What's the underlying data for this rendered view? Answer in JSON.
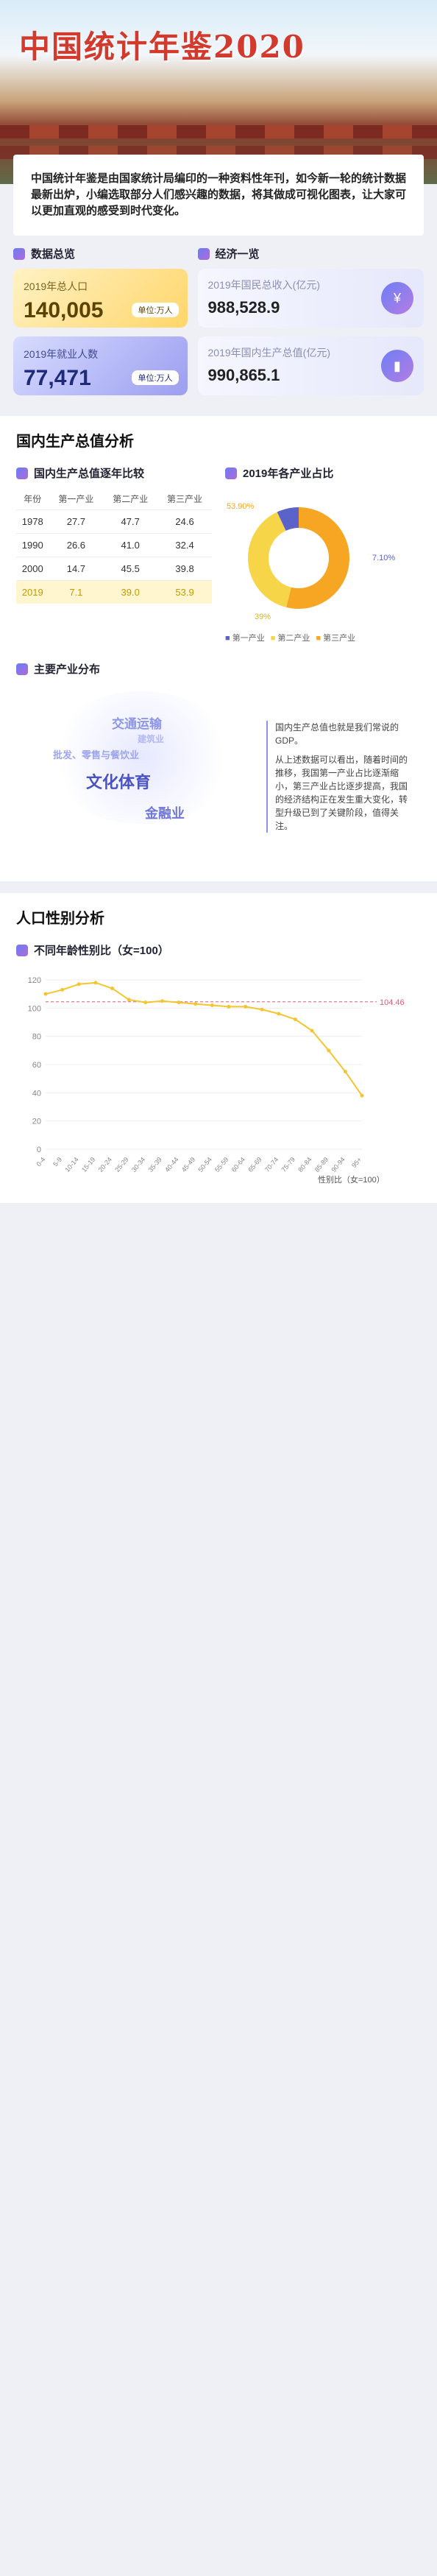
{
  "title": "中国统计年鉴2020",
  "intro": "中国统计年鉴是由国家统计局编印的一种资料性年刊，如今新一轮的统计数据最新出炉，小编选取部分人们感兴趣的数据，将其做成可视化图表，让大家可以更加直观的感受到时代变化。",
  "overview": {
    "title": "数据总览",
    "pop_label": "2019年总人口",
    "pop_value": "140,005",
    "pop_unit": "单位:万人",
    "emp_label": "2019年就业人数",
    "emp_value": "77,471",
    "emp_unit": "单位:万人"
  },
  "economy": {
    "title": "经济一览",
    "gni_label": "2019年国民总收入(亿元)",
    "gni_value": "988,528.9",
    "gdp_label": "2019年国内生产总值(亿元)",
    "gdp_value": "990,865.1"
  },
  "gdp_section": {
    "title": "国内生产总值分析",
    "table_title": "国内生产总值逐年比较",
    "pie_title": "2019年各产业占比",
    "headers": [
      "年份",
      "第一产业",
      "第二产业",
      "第三产业"
    ],
    "rows": [
      [
        "1978",
        "27.7",
        "47.7",
        "24.6"
      ],
      [
        "1990",
        "26.6",
        "41.0",
        "32.4"
      ],
      [
        "2000",
        "14.7",
        "45.5",
        "39.8"
      ],
      [
        "2019",
        "7.1",
        "39.0",
        "53.9"
      ]
    ],
    "pie_labels": [
      "53.90%",
      "7.10%",
      "39%"
    ],
    "legend": [
      "第一产业",
      "第二产业",
      "第三产业"
    ],
    "dist_title": "主要产业分布",
    "words": [
      "交通运输",
      "批发、零售与餐饮业",
      "文化体育",
      "金融业",
      "建筑业"
    ],
    "note1": "国内生产总值也就是我们常说的GDP。",
    "note2": "从上述数据可以看出，随着时间的推移，我国第一产业占比逐渐缩小，第三产业占比逐步提高，我国的经济结构正在发生重大变化，转型升级已到了关键阶段，值得关注。"
  },
  "sex_section": {
    "title": "人口性别分析",
    "chart_title": "不同年龄性别比（女=100）",
    "legend": "性别比（女=100）",
    "end_label": "104.46"
  },
  "chart_data": {
    "type": "line",
    "title": "不同年龄性别比（女=100）",
    "ylim": [
      0,
      120
    ],
    "yticks": [
      0,
      20,
      40,
      60,
      80,
      100,
      120
    ],
    "x": [
      "0-4",
      "5-9",
      "10-14",
      "15-19",
      "20-24",
      "25-29",
      "30-34",
      "35-39",
      "40-44",
      "45-49",
      "50-54",
      "55-59",
      "60-64",
      "65-69",
      "70-74",
      "75-79",
      "80-84",
      "85-89",
      "90-94",
      "95+"
    ],
    "series": [
      {
        "name": "性别比（女=100）",
        "values": [
          110,
          113,
          117,
          118,
          114,
          106,
          104,
          105,
          104,
          103,
          102,
          101,
          101,
          99,
          96,
          92,
          84,
          70,
          55,
          38
        ]
      }
    ]
  },
  "colors": {
    "accent": "#d23a2e",
    "line": "#f4c531",
    "ref": "#e05a7a"
  }
}
